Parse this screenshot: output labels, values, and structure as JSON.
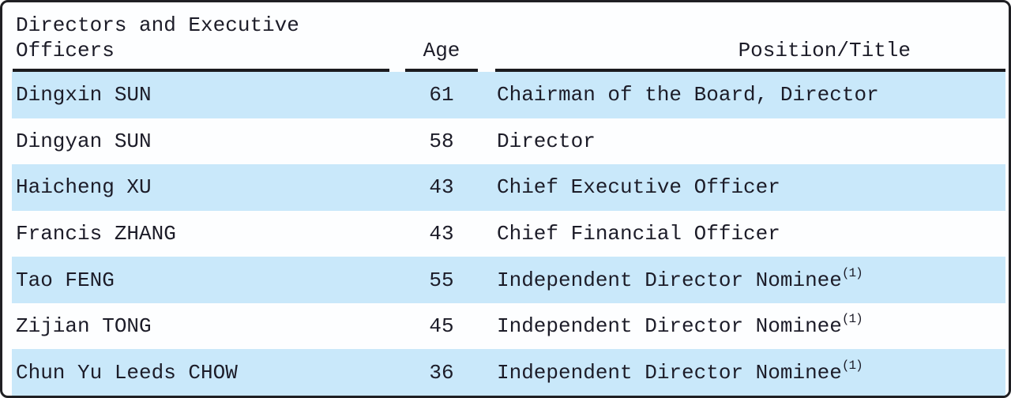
{
  "table": {
    "header": {
      "col1_line1": "Directors and Executive",
      "col1_line2": "Officers",
      "age": "Age",
      "position": "Position/Title"
    },
    "rows": [
      {
        "name": "Dingxin SUN",
        "age": "61",
        "position": "Chairman of the Board, Director",
        "note": ""
      },
      {
        "name": "Dingyan SUN",
        "age": "58",
        "position": "Director",
        "note": ""
      },
      {
        "name": "Haicheng XU",
        "age": "43",
        "position": "Chief Executive Officer",
        "note": ""
      },
      {
        "name": "Francis ZHANG",
        "age": "43",
        "position": "Chief Financial Officer",
        "note": ""
      },
      {
        "name": "Tao FENG",
        "age": "55",
        "position": "Independent Director Nominee",
        "note": "(1)"
      },
      {
        "name": "Zijian TONG",
        "age": "45",
        "position": "Independent Director Nominee",
        "note": "(1)"
      },
      {
        "name": "Chun Yu Leeds CHOW",
        "age": "36",
        "position": "Independent Director Nominee",
        "note": "(1)"
      }
    ]
  },
  "colors": {
    "row_highlight": "#c9e8fa",
    "rule": "#1b1b1f",
    "text": "#1c1c28",
    "card_border": "#1f1f23"
  }
}
